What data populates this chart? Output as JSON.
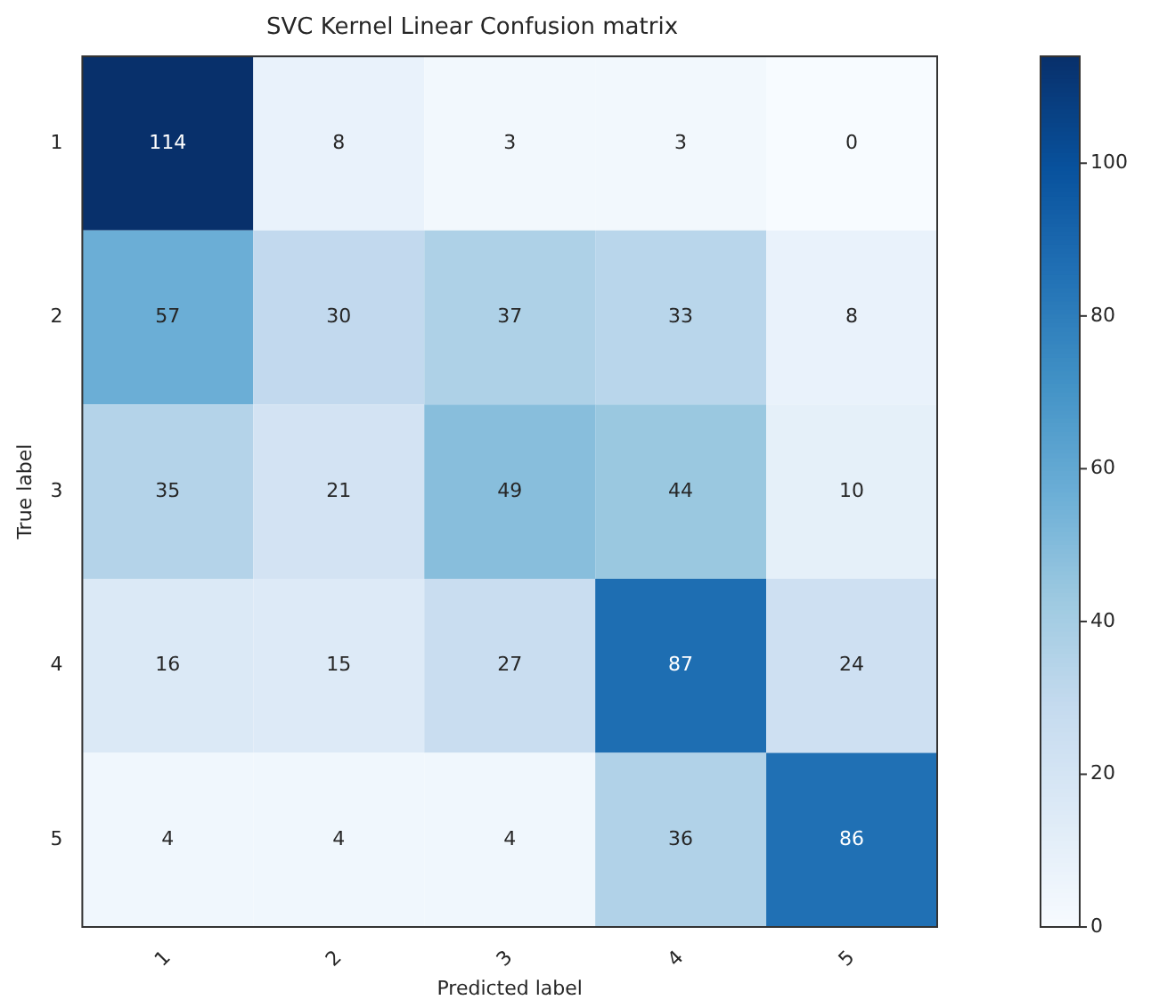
{
  "chart_data": {
    "type": "heatmap",
    "title": "SVC Kernel Linear Confusion matrix",
    "xlabel": "Predicted label",
    "ylabel": "True label",
    "categories": [
      "1",
      "2",
      "3",
      "4",
      "5"
    ],
    "y_categories": [
      "1",
      "2",
      "3",
      "4",
      "5"
    ],
    "cells": [
      [
        114,
        8,
        3,
        3,
        0
      ],
      [
        57,
        30,
        37,
        33,
        8
      ],
      [
        35,
        21,
        49,
        44,
        10
      ],
      [
        16,
        15,
        27,
        87,
        24
      ],
      [
        4,
        4,
        4,
        36,
        86
      ]
    ],
    "clim": [
      0,
      114
    ],
    "cticks": [
      0,
      20,
      40,
      60,
      80,
      100
    ],
    "data_labels": true,
    "grid": false
  }
}
